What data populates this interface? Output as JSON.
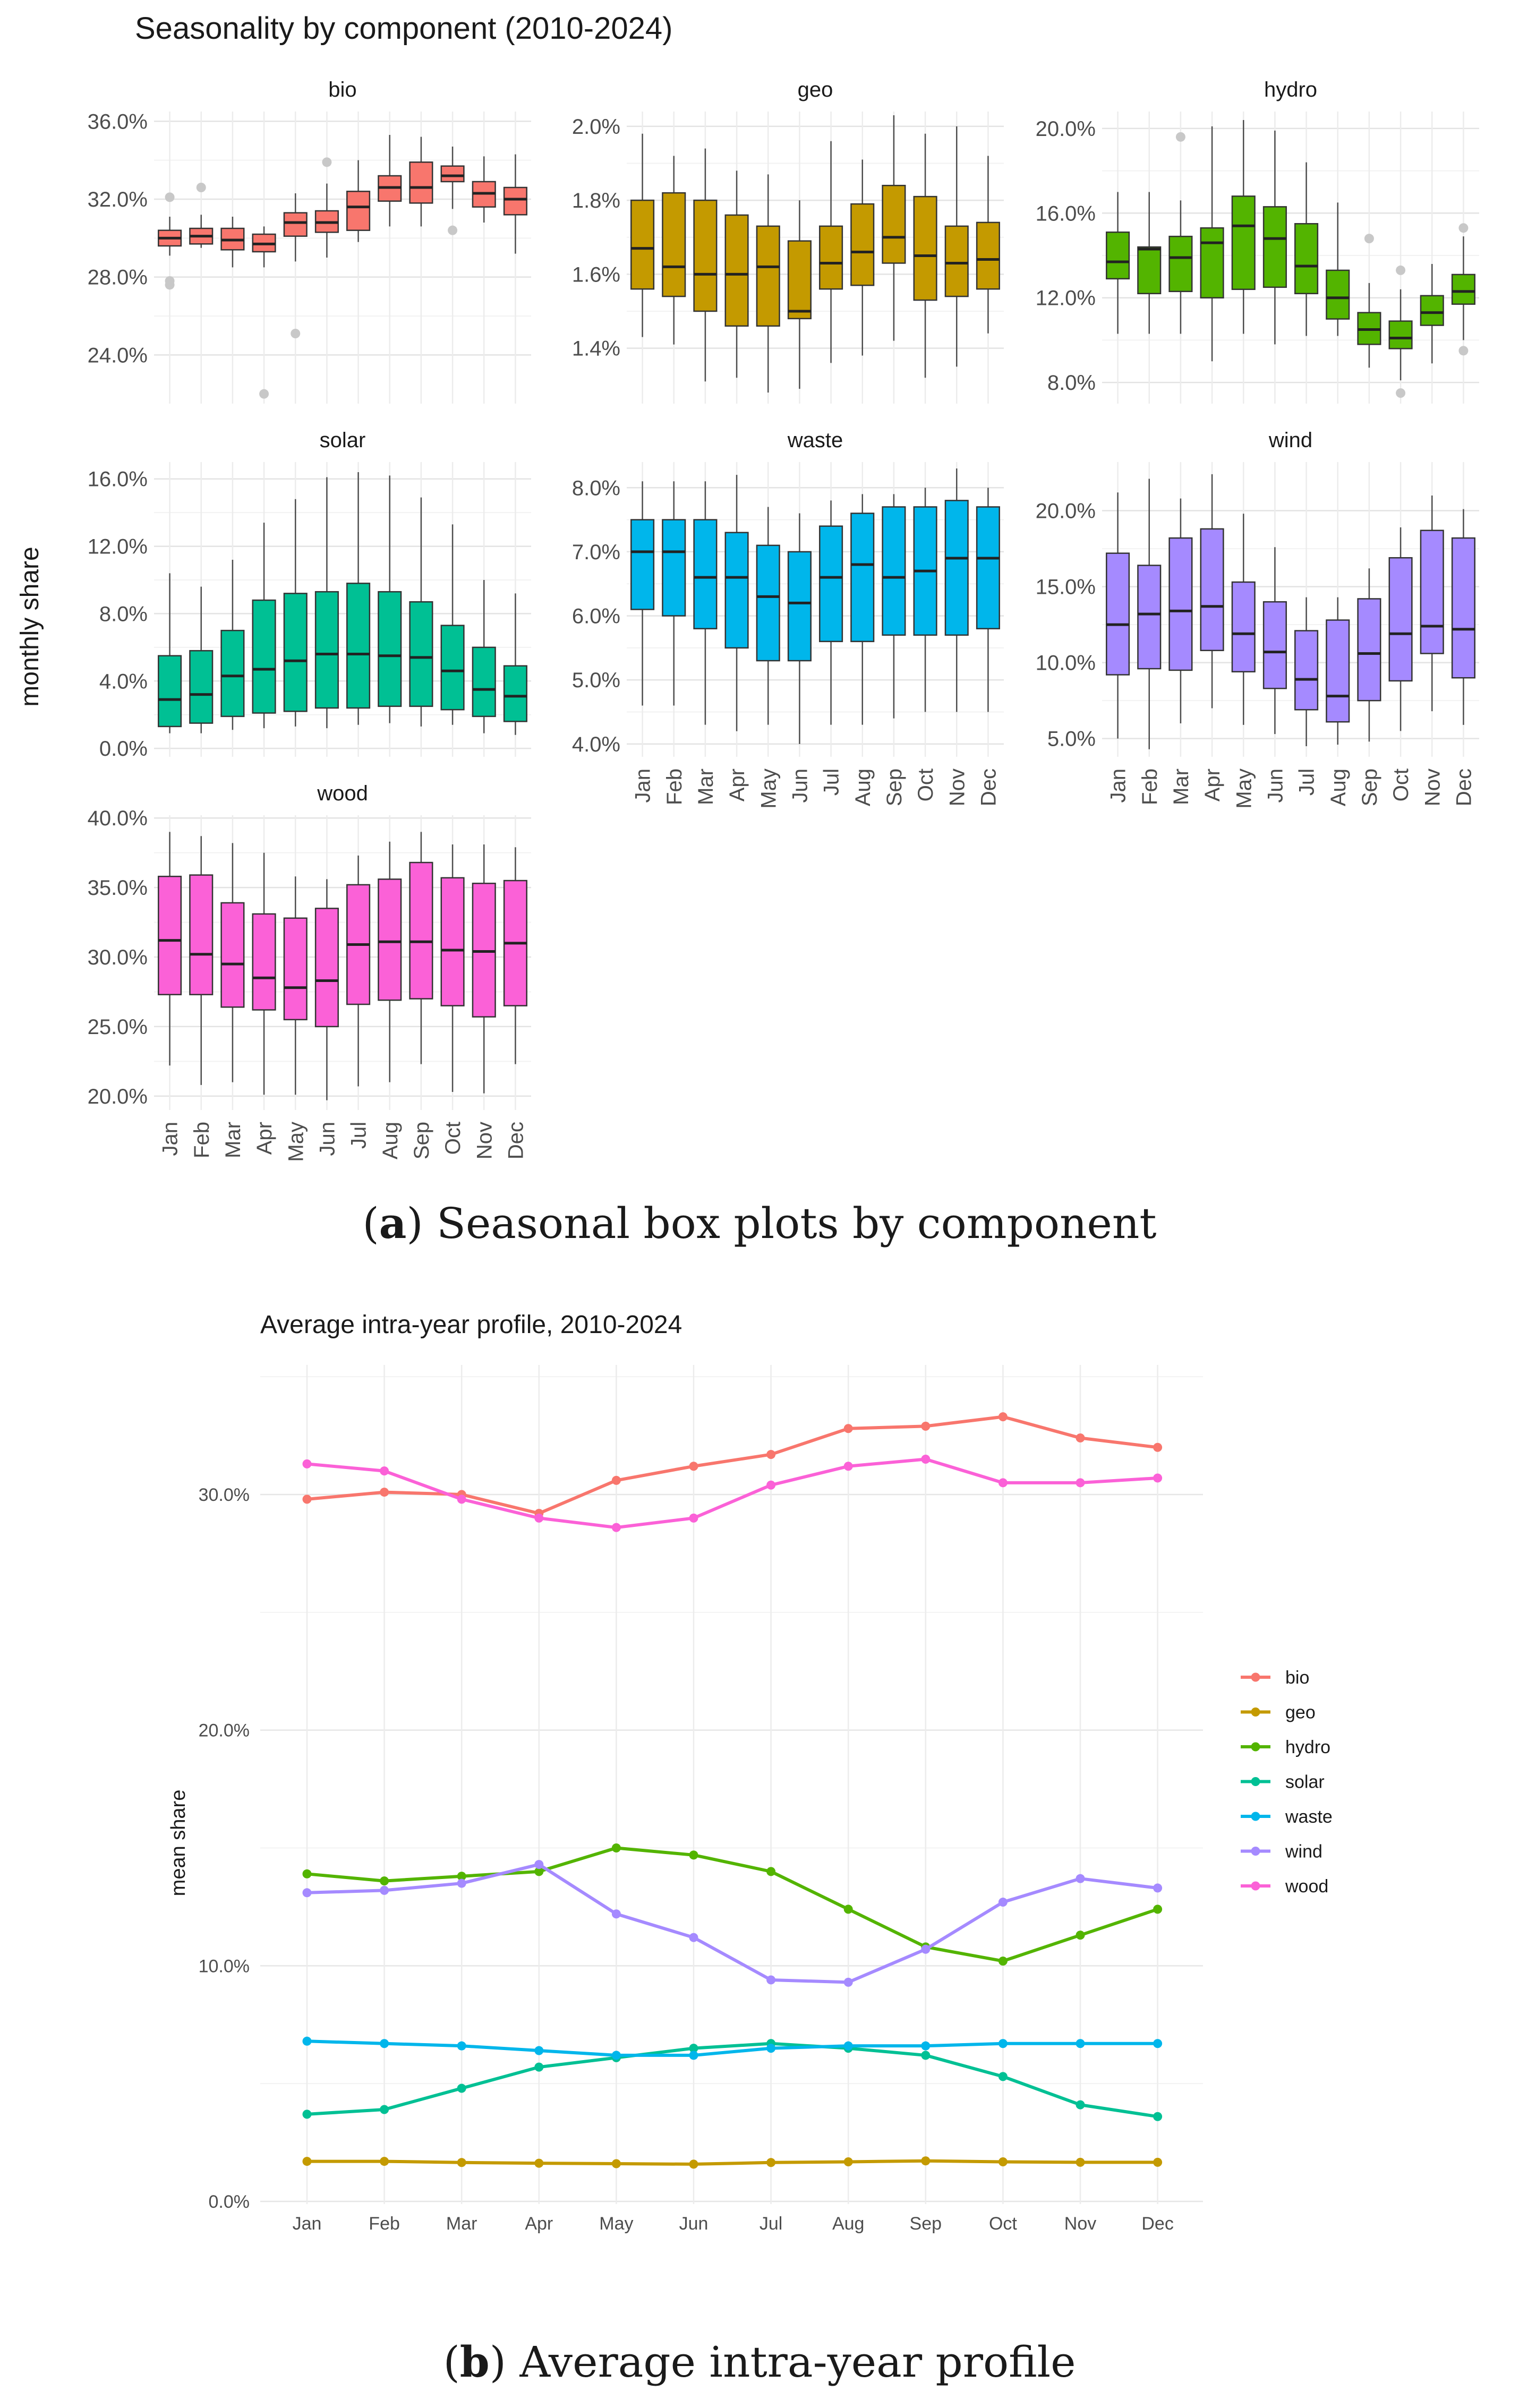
{
  "captions": {
    "a": {
      "label": "a",
      "text": "Seasonal box plots by component"
    },
    "b": {
      "label": "b",
      "text": "Average intra-year profile"
    }
  },
  "chart_data": [
    {
      "type": "box",
      "title": "Seasonality by component (2010-2024)",
      "ylabel": "monthly share",
      "categories": [
        "Jan",
        "Feb",
        "Mar",
        "Apr",
        "May",
        "Jun",
        "Jul",
        "Aug",
        "Sep",
        "Oct",
        "Nov",
        "Dec"
      ],
      "panels": [
        {
          "name": "bio",
          "color": "#F8766D",
          "ylim": [
            21.5,
            36.5
          ],
          "ticks": [
            24,
            28,
            32,
            36
          ],
          "tick_labels": [
            "24.0%",
            "28.0%",
            "32.0%",
            "36.0%"
          ],
          "boxes": [
            [
              29.1,
              29.6,
              30.0,
              30.4,
              31.1
            ],
            [
              29.5,
              29.7,
              30.1,
              30.5,
              31.2
            ],
            [
              28.5,
              29.4,
              29.9,
              30.5,
              31.1
            ],
            [
              28.5,
              29.3,
              29.7,
              30.2,
              30.6
            ],
            [
              28.8,
              30.1,
              30.8,
              31.3,
              32.3
            ],
            [
              29.0,
              30.3,
              30.8,
              31.4,
              32.8
            ],
            [
              29.8,
              30.4,
              31.6,
              32.4,
              34.0
            ],
            [
              30.6,
              31.9,
              32.6,
              33.2,
              35.3
            ],
            [
              30.6,
              31.8,
              32.6,
              33.9,
              35.2
            ],
            [
              31.5,
              32.9,
              33.2,
              33.7,
              34.7
            ],
            [
              30.8,
              31.6,
              32.3,
              32.9,
              34.2
            ],
            [
              29.2,
              31.2,
              32.0,
              32.6,
              34.3
            ]
          ],
          "outliers": [
            [
              0,
              32.1
            ],
            [
              0,
              27.8
            ],
            [
              0,
              27.6
            ],
            [
              1,
              32.6
            ],
            [
              3,
              22.0
            ],
            [
              4,
              25.1
            ],
            [
              5,
              33.9
            ],
            [
              9,
              30.4
            ]
          ]
        },
        {
          "name": "geo",
          "color": "#C49A00",
          "ylim": [
            1.25,
            2.04
          ],
          "ticks": [
            1.4,
            1.6,
            1.8,
            2.0
          ],
          "tick_labels": [
            "1.4%",
            "1.6%",
            "1.8%",
            "2.0%"
          ],
          "boxes": [
            [
              1.43,
              1.56,
              1.67,
              1.8,
              1.98
            ],
            [
              1.41,
              1.54,
              1.62,
              1.82,
              1.92
            ],
            [
              1.31,
              1.5,
              1.6,
              1.8,
              1.94
            ],
            [
              1.32,
              1.46,
              1.6,
              1.76,
              1.88
            ],
            [
              1.28,
              1.46,
              1.62,
              1.73,
              1.87
            ],
            [
              1.29,
              1.48,
              1.5,
              1.69,
              1.8
            ],
            [
              1.36,
              1.56,
              1.63,
              1.73,
              1.96
            ],
            [
              1.38,
              1.57,
              1.66,
              1.79,
              1.91
            ],
            [
              1.42,
              1.63,
              1.7,
              1.84,
              2.03
            ],
            [
              1.32,
              1.53,
              1.65,
              1.81,
              1.98
            ],
            [
              1.35,
              1.54,
              1.63,
              1.73,
              2.0
            ],
            [
              1.44,
              1.56,
              1.64,
              1.74,
              1.92
            ]
          ],
          "outliers": []
        },
        {
          "name": "hydro",
          "color": "#53B400",
          "ylim": [
            7.0,
            20.8
          ],
          "ticks": [
            8,
            12,
            16,
            20
          ],
          "tick_labels": [
            "8.0%",
            "12.0%",
            "16.0%",
            "20.0%"
          ],
          "boxes": [
            [
              10.3,
              12.9,
              13.7,
              15.1,
              17.0
            ],
            [
              10.3,
              12.2,
              14.3,
              14.4,
              17.0
            ],
            [
              10.3,
              12.3,
              13.9,
              14.9,
              16.6
            ],
            [
              9.0,
              12.0,
              14.6,
              15.3,
              20.1
            ],
            [
              10.3,
              12.4,
              15.4,
              16.8,
              20.4
            ],
            [
              9.8,
              12.5,
              14.8,
              16.3,
              19.9
            ],
            [
              10.2,
              12.2,
              13.5,
              15.5,
              18.4
            ],
            [
              10.2,
              11.0,
              12.0,
              13.3,
              16.5
            ],
            [
              8.7,
              9.8,
              10.5,
              11.3,
              12.7
            ],
            [
              8.1,
              9.6,
              10.1,
              10.9,
              12.4
            ],
            [
              8.9,
              10.7,
              11.3,
              12.1,
              13.6
            ],
            [
              10.0,
              11.7,
              12.3,
              13.1,
              14.9
            ]
          ],
          "outliers": [
            [
              2,
              19.6
            ],
            [
              8,
              14.8
            ],
            [
              9,
              13.3
            ],
            [
              9,
              7.5
            ],
            [
              11,
              15.3
            ],
            [
              11,
              9.5
            ]
          ]
        },
        {
          "name": "solar",
          "color": "#00C094",
          "ylim": [
            -0.5,
            17.0
          ],
          "ticks": [
            0,
            4,
            8,
            12,
            16
          ],
          "tick_labels": [
            "0.0%",
            "4.0%",
            "8.0%",
            "12.0%",
            "16.0%"
          ],
          "boxes": [
            [
              0.9,
              1.3,
              2.9,
              5.5,
              10.4
            ],
            [
              0.9,
              1.5,
              3.2,
              5.8,
              9.6
            ],
            [
              1.1,
              1.9,
              4.3,
              7.0,
              11.2
            ],
            [
              1.2,
              2.1,
              4.7,
              8.8,
              13.4
            ],
            [
              1.3,
              2.2,
              5.2,
              9.2,
              14.8
            ],
            [
              1.2,
              2.4,
              5.6,
              9.3,
              16.1
            ],
            [
              1.4,
              2.4,
              5.6,
              9.8,
              16.4
            ],
            [
              1.5,
              2.5,
              5.5,
              9.3,
              16.2
            ],
            [
              1.3,
              2.5,
              5.4,
              8.7,
              14.9
            ],
            [
              1.4,
              2.3,
              4.6,
              7.3,
              13.3
            ],
            [
              0.9,
              1.9,
              3.5,
              6.0,
              10.0
            ],
            [
              0.8,
              1.6,
              3.1,
              4.9,
              9.2
            ]
          ],
          "outliers": []
        },
        {
          "name": "waste",
          "color": "#00B6EB",
          "ylim": [
            3.8,
            8.4
          ],
          "ticks": [
            4,
            5,
            6,
            7,
            8
          ],
          "tick_labels": [
            "4.0%",
            "5.0%",
            "6.0%",
            "7.0%",
            "8.0%"
          ],
          "boxes": [
            [
              4.6,
              6.1,
              7.0,
              7.5,
              8.1
            ],
            [
              4.6,
              6.0,
              7.0,
              7.5,
              8.1
            ],
            [
              4.3,
              5.8,
              6.6,
              7.5,
              8.1
            ],
            [
              4.2,
              5.5,
              6.6,
              7.3,
              8.2
            ],
            [
              4.3,
              5.3,
              6.3,
              7.1,
              7.7
            ],
            [
              4.0,
              5.3,
              6.2,
              7.0,
              7.6
            ],
            [
              4.3,
              5.6,
              6.6,
              7.4,
              7.8
            ],
            [
              4.3,
              5.6,
              6.8,
              7.6,
              7.9
            ],
            [
              4.4,
              5.7,
              6.6,
              7.7,
              7.9
            ],
            [
              4.5,
              5.7,
              6.7,
              7.7,
              8.0
            ],
            [
              4.5,
              5.7,
              6.9,
              7.8,
              8.3
            ],
            [
              4.5,
              5.8,
              6.9,
              7.7,
              8.0
            ]
          ],
          "outliers": []
        },
        {
          "name": "wind",
          "color": "#A58AFF",
          "ylim": [
            3.8,
            23.2
          ],
          "ticks": [
            5,
            10,
            15,
            20
          ],
          "tick_labels": [
            "5.0%",
            "10.0%",
            "15.0%",
            "20.0%"
          ],
          "boxes": [
            [
              5.0,
              9.2,
              12.5,
              17.2,
              21.2
            ],
            [
              4.3,
              9.6,
              13.2,
              16.4,
              22.1
            ],
            [
              6.0,
              9.5,
              13.4,
              18.2,
              20.8
            ],
            [
              7.0,
              10.8,
              13.7,
              18.8,
              22.4
            ],
            [
              5.9,
              9.4,
              11.9,
              15.3,
              19.8
            ],
            [
              5.3,
              8.3,
              10.7,
              14.0,
              17.6
            ],
            [
              4.5,
              6.9,
              8.9,
              12.1,
              14.3
            ],
            [
              4.6,
              6.1,
              7.8,
              12.8,
              14.3
            ],
            [
              4.8,
              7.5,
              10.6,
              14.2,
              16.2
            ],
            [
              5.5,
              8.8,
              11.9,
              16.9,
              18.9
            ],
            [
              6.8,
              10.6,
              12.4,
              18.7,
              21.0
            ],
            [
              5.9,
              9.0,
              12.2,
              18.2,
              20.1
            ]
          ],
          "outliers": []
        },
        {
          "name": "wood",
          "color": "#FB61D7",
          "ylim": [
            19.0,
            40.2
          ],
          "ticks": [
            20,
            25,
            30,
            35,
            40
          ],
          "tick_labels": [
            "20.0%",
            "25.0%",
            "30.0%",
            "35.0%",
            "40.0%"
          ],
          "boxes": [
            [
              22.2,
              27.3,
              31.2,
              35.8,
              39.0
            ],
            [
              20.8,
              27.3,
              30.2,
              35.9,
              38.7
            ],
            [
              21.0,
              26.4,
              29.5,
              33.9,
              38.2
            ],
            [
              20.1,
              26.2,
              28.5,
              33.1,
              37.5
            ],
            [
              20.1,
              25.5,
              27.8,
              32.8,
              35.8
            ],
            [
              19.7,
              25.0,
              28.3,
              33.5,
              35.6
            ],
            [
              20.7,
              26.6,
              30.9,
              35.2,
              37.3
            ],
            [
              21.0,
              26.9,
              31.1,
              35.6,
              38.3
            ],
            [
              22.3,
              27.0,
              31.1,
              36.8,
              39.0
            ],
            [
              20.3,
              26.5,
              30.5,
              35.7,
              38.1
            ],
            [
              20.2,
              25.7,
              30.4,
              35.3,
              38.1
            ],
            [
              22.3,
              26.5,
              31.0,
              35.5,
              37.9
            ]
          ],
          "outliers": []
        }
      ]
    },
    {
      "type": "line",
      "title": "Average intra-year profile, 2010-2024",
      "ylabel": "mean share",
      "xlabel": "",
      "categories": [
        "Jan",
        "Feb",
        "Mar",
        "Apr",
        "May",
        "Jun",
        "Jul",
        "Aug",
        "Sep",
        "Oct",
        "Nov",
        "Dec"
      ],
      "ylim": [
        0,
        35.5
      ],
      "yticks": [
        0,
        10,
        20,
        30
      ],
      "ytick_labels": [
        "0.0%",
        "10.0%",
        "20.0%",
        "30.0%"
      ],
      "legend_position": "right",
      "series": [
        {
          "name": "bio",
          "color": "#F8766D",
          "values": [
            29.8,
            30.1,
            30.0,
            29.2,
            30.6,
            31.2,
            31.7,
            32.8,
            32.9,
            33.3,
            32.4,
            32.0
          ]
        },
        {
          "name": "geo",
          "color": "#C49A00",
          "values": [
            1.7,
            1.7,
            1.65,
            1.62,
            1.6,
            1.58,
            1.65,
            1.68,
            1.72,
            1.68,
            1.66,
            1.66
          ]
        },
        {
          "name": "hydro",
          "color": "#53B400",
          "values": [
            13.9,
            13.6,
            13.8,
            14.0,
            15.0,
            14.7,
            14.0,
            12.4,
            10.8,
            10.2,
            11.3,
            12.4
          ]
        },
        {
          "name": "solar",
          "color": "#00C094",
          "values": [
            3.7,
            3.9,
            4.8,
            5.7,
            6.1,
            6.5,
            6.7,
            6.5,
            6.2,
            5.3,
            4.1,
            3.6
          ]
        },
        {
          "name": "waste",
          "color": "#00B6EB",
          "values": [
            6.8,
            6.7,
            6.6,
            6.4,
            6.2,
            6.2,
            6.5,
            6.6,
            6.6,
            6.7,
            6.7,
            6.7
          ]
        },
        {
          "name": "wind",
          "color": "#A58AFF",
          "values": [
            13.1,
            13.2,
            13.5,
            14.3,
            12.2,
            11.2,
            9.4,
            9.3,
            10.7,
            12.7,
            13.7,
            13.3
          ]
        },
        {
          "name": "wood",
          "color": "#FB61D7",
          "values": [
            31.3,
            31.0,
            29.8,
            29.0,
            28.6,
            29.0,
            30.4,
            31.2,
            31.5,
            30.5,
            30.5,
            30.7
          ]
        }
      ]
    }
  ]
}
